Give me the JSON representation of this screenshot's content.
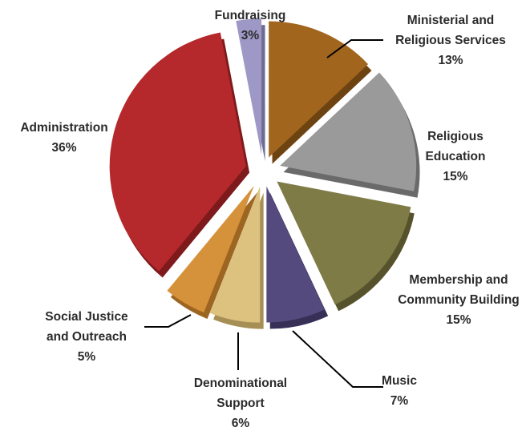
{
  "chart_data": {
    "type": "pie",
    "style": "3d-exploded",
    "legend": "none",
    "slices": [
      {
        "label_lines": [
          "Ministerial and",
          "Religious Services"
        ],
        "value_label": "13%",
        "value": 13,
        "color": "#A2651E",
        "side": "#6E4312"
      },
      {
        "label_lines": [
          "Religious",
          "Education"
        ],
        "value_label": "15%",
        "value": 15,
        "color": "#9A9A9A",
        "side": "#6A6A6A"
      },
      {
        "label_lines": [
          "Membership and",
          "Community Building"
        ],
        "value_label": "15%",
        "value": 15,
        "color": "#7F7B47",
        "side": "#56532C"
      },
      {
        "label_lines": [
          "Music"
        ],
        "value_label": "7%",
        "value": 7,
        "color": "#554A7E",
        "side": "#372F56"
      },
      {
        "label_lines": [
          "Denominational",
          "Support"
        ],
        "value_label": "6%",
        "value": 6,
        "color": "#DDC27F",
        "side": "#A68F55"
      },
      {
        "label_lines": [
          "Social Justice",
          "and Outreach"
        ],
        "value_label": "5%",
        "value": 5,
        "color": "#D6923A",
        "side": "#9C6522"
      },
      {
        "label_lines": [
          "Administration"
        ],
        "value_label": "36%",
        "value": 36,
        "color": "#B5292C",
        "side": "#7E1A1C"
      },
      {
        "label_lines": [
          "Fundraising"
        ],
        "value_label": "3%",
        "value": 3,
        "color": "#9E98C6",
        "side": "#6F6A94"
      }
    ]
  }
}
